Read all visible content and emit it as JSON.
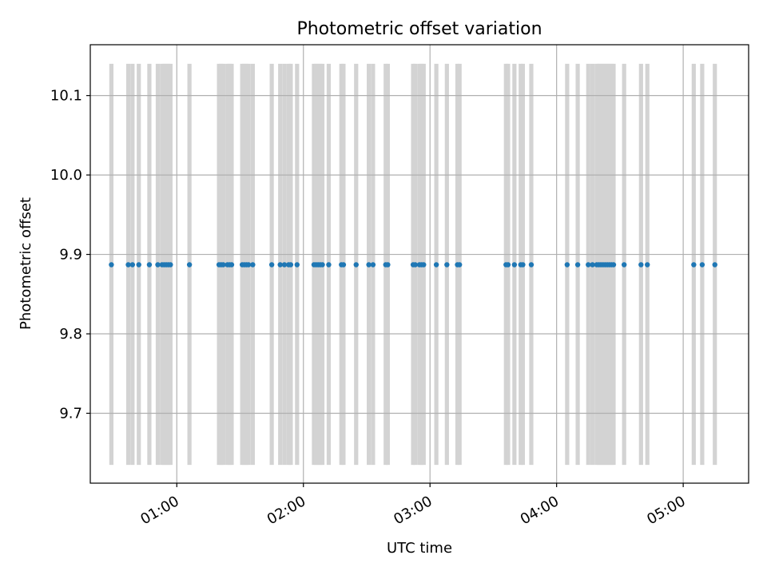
{
  "chart_data": {
    "type": "scatter",
    "title": "Photometric offset variation",
    "xlabel": "UTC time",
    "ylabel": "Photometric offset",
    "x_ticks": [
      "01:00",
      "02:00",
      "03:00",
      "04:00",
      "05:00"
    ],
    "y_ticks": [
      9.7,
      9.8,
      9.9,
      10.0,
      10.1
    ],
    "y_tick_labels": [
      "9.7",
      "9.8",
      "9.9",
      "10.0",
      "10.1"
    ],
    "xlim": [
      "00:19",
      "05:31"
    ],
    "ylim": [
      9.612,
      10.164
    ],
    "grid": true,
    "colors": {
      "points": "#1f77b4",
      "bands": "#d3d3d3",
      "grid": "#b0b0b0"
    },
    "band_range": [
      9.635,
      10.14
    ],
    "series": [
      {
        "x": [
          "00:29",
          "00:37",
          "00:39",
          "00:42",
          "00:47",
          "00:51",
          "00:53",
          "00:54",
          "00:55",
          "00:56",
          "00:57",
          "01:06",
          "01:21",
          "01:20",
          "01:22",
          "01:24",
          "01:25",
          "01:26",
          "01:31",
          "01:32",
          "01:33",
          "01:34",
          "01:36",
          "01:45",
          "01:49",
          "01:51",
          "01:53",
          "01:54",
          "01:57",
          "02:05",
          "02:06",
          "02:07",
          "02:08",
          "02:09",
          "02:12",
          "02:18",
          "02:19",
          "02:25",
          "02:31",
          "02:33",
          "02:39",
          "02:40",
          "02:52",
          "02:53",
          "02:55",
          "02:56",
          "02:57",
          "03:03",
          "03:08",
          "03:13",
          "03:14",
          "03:36",
          "03:37",
          "03:40",
          "03:43",
          "03:44",
          "03:48",
          "04:05",
          "04:10",
          "04:15",
          "04:17",
          "04:19",
          "04:20",
          "04:21",
          "04:22",
          "04:23",
          "04:24",
          "04:25",
          "04:26",
          "04:27",
          "04:32",
          "04:40",
          "04:43",
          "05:05",
          "05:09",
          "05:15"
        ],
        "y": [
          9.887,
          9.887,
          9.887,
          9.887,
          9.887,
          9.887,
          9.887,
          9.887,
          9.887,
          9.887,
          9.887,
          9.887,
          9.887,
          9.887,
          9.887,
          9.887,
          9.887,
          9.887,
          9.887,
          9.887,
          9.887,
          9.887,
          9.887,
          9.887,
          9.887,
          9.887,
          9.887,
          9.887,
          9.887,
          9.887,
          9.887,
          9.887,
          9.887,
          9.887,
          9.887,
          9.887,
          9.887,
          9.887,
          9.887,
          9.887,
          9.887,
          9.887,
          9.887,
          9.887,
          9.887,
          9.887,
          9.887,
          9.887,
          9.887,
          9.887,
          9.887,
          9.887,
          9.887,
          9.887,
          9.887,
          9.887,
          9.887,
          9.887,
          9.887,
          9.887,
          9.887,
          9.887,
          9.887,
          9.887,
          9.887,
          9.887,
          9.887,
          9.887,
          9.887,
          9.887,
          9.887,
          9.887,
          9.887,
          9.887,
          9.887,
          9.887
        ]
      }
    ]
  }
}
